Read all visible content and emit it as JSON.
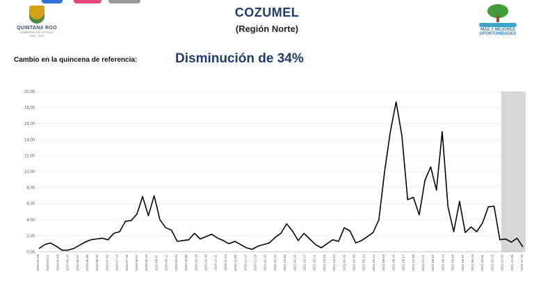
{
  "header": {
    "title": "COZUMEL",
    "subtitle": "(Región Norte)",
    "left_logo": {
      "name": "QUINTANA ROO",
      "tagline": "GOBIERNO DEL ESTADO",
      "years": "2016 - 2022"
    },
    "right_logo": {
      "line1": "MÁS Y MEJORES",
      "line2": "OPORTUNIDADES"
    }
  },
  "summary": {
    "label": "Cambio en la quincena de referencia:",
    "value": "Disminución de 34%"
  },
  "colors": {
    "title": "#1f3d6b",
    "line": "#000000",
    "shade": "#d3d3d3",
    "grid": "#e6e6e6"
  },
  "chart_data": {
    "type": "line",
    "title": "",
    "xlabel": "",
    "ylabel": "",
    "ylim": [
      0,
      20
    ],
    "yticks": [
      "0,00",
      "2,00",
      "4,00",
      "6,00",
      "8,00",
      "10,00",
      "12,00",
      "14,00",
      "16,00",
      "18,00",
      "20,00"
    ],
    "x_tick_labels": [
      "2020-04-09",
      "2020-04-21",
      "2020-05-03",
      "2020-05-15",
      "2020-05-27",
      "2020-06-08",
      "2020-06-20",
      "2020-07-02",
      "2020-07-14",
      "2020-07-26",
      "2020-08-07",
      "2020-08-19",
      "2020-08-31",
      "2020-09-12",
      "2020-09-24",
      "2020-10-06",
      "2020-10-18",
      "2020-10-30",
      "2020-11-11",
      "2020-11-23",
      "2020-12-05",
      "2020-12-17",
      "2020-12-29",
      "2021-01-10",
      "2021-01-22",
      "2021-02-03",
      "2021-02-15",
      "2021-02-27",
      "2021-03-11",
      "2021-03-23",
      "2021-04-04",
      "2021-04-16",
      "2021-04-28",
      "2021-05-10",
      "2021-05-22",
      "2021-06-03",
      "2021-06-15",
      "2021-06-27",
      "2021-07-09",
      "2021-07-21",
      "2021-08-02",
      "2021-08-14",
      "2021-08-26",
      "2021-09-07",
      "2021-09-19",
      "2021-10-01",
      "2021-10-13",
      "2021-10-25",
      "2021-11-06",
      "2021-11-18"
    ],
    "shaded_region": {
      "from_index": 47,
      "to_index": 49
    },
    "series": [
      {
        "values": [
          0.4,
          0.9,
          1.1,
          0.7,
          0.2,
          0.2,
          0.4,
          0.8,
          1.2,
          1.5,
          1.6,
          1.7,
          1.5,
          2.3,
          2.5,
          3.8,
          3.9,
          4.7,
          6.9,
          4.5,
          7.0,
          4.0,
          3.0,
          2.7,
          1.3,
          1.4,
          1.5,
          2.3,
          1.6,
          1.9,
          2.2,
          1.7,
          1.4,
          1.0,
          1.3,
          0.9,
          0.5,
          0.3,
          0.7,
          0.9,
          1.1,
          1.8,
          2.3,
          3.5,
          2.6,
          1.4,
          2.3,
          1.6,
          0.9,
          0.5,
          1.0,
          1.5,
          1.3,
          3.0,
          2.6,
          1.1,
          1.4,
          1.9,
          2.4,
          4.0,
          10.0,
          15.0,
          18.7,
          14.5,
          6.5,
          6.8,
          4.6,
          8.9,
          10.6,
          7.7,
          15.0,
          5.6,
          2.5,
          6.3,
          2.4,
          3.1,
          2.5,
          3.6,
          5.6,
          5.7,
          1.5,
          1.6,
          1.2,
          1.7,
          0.6
        ]
      }
    ]
  }
}
